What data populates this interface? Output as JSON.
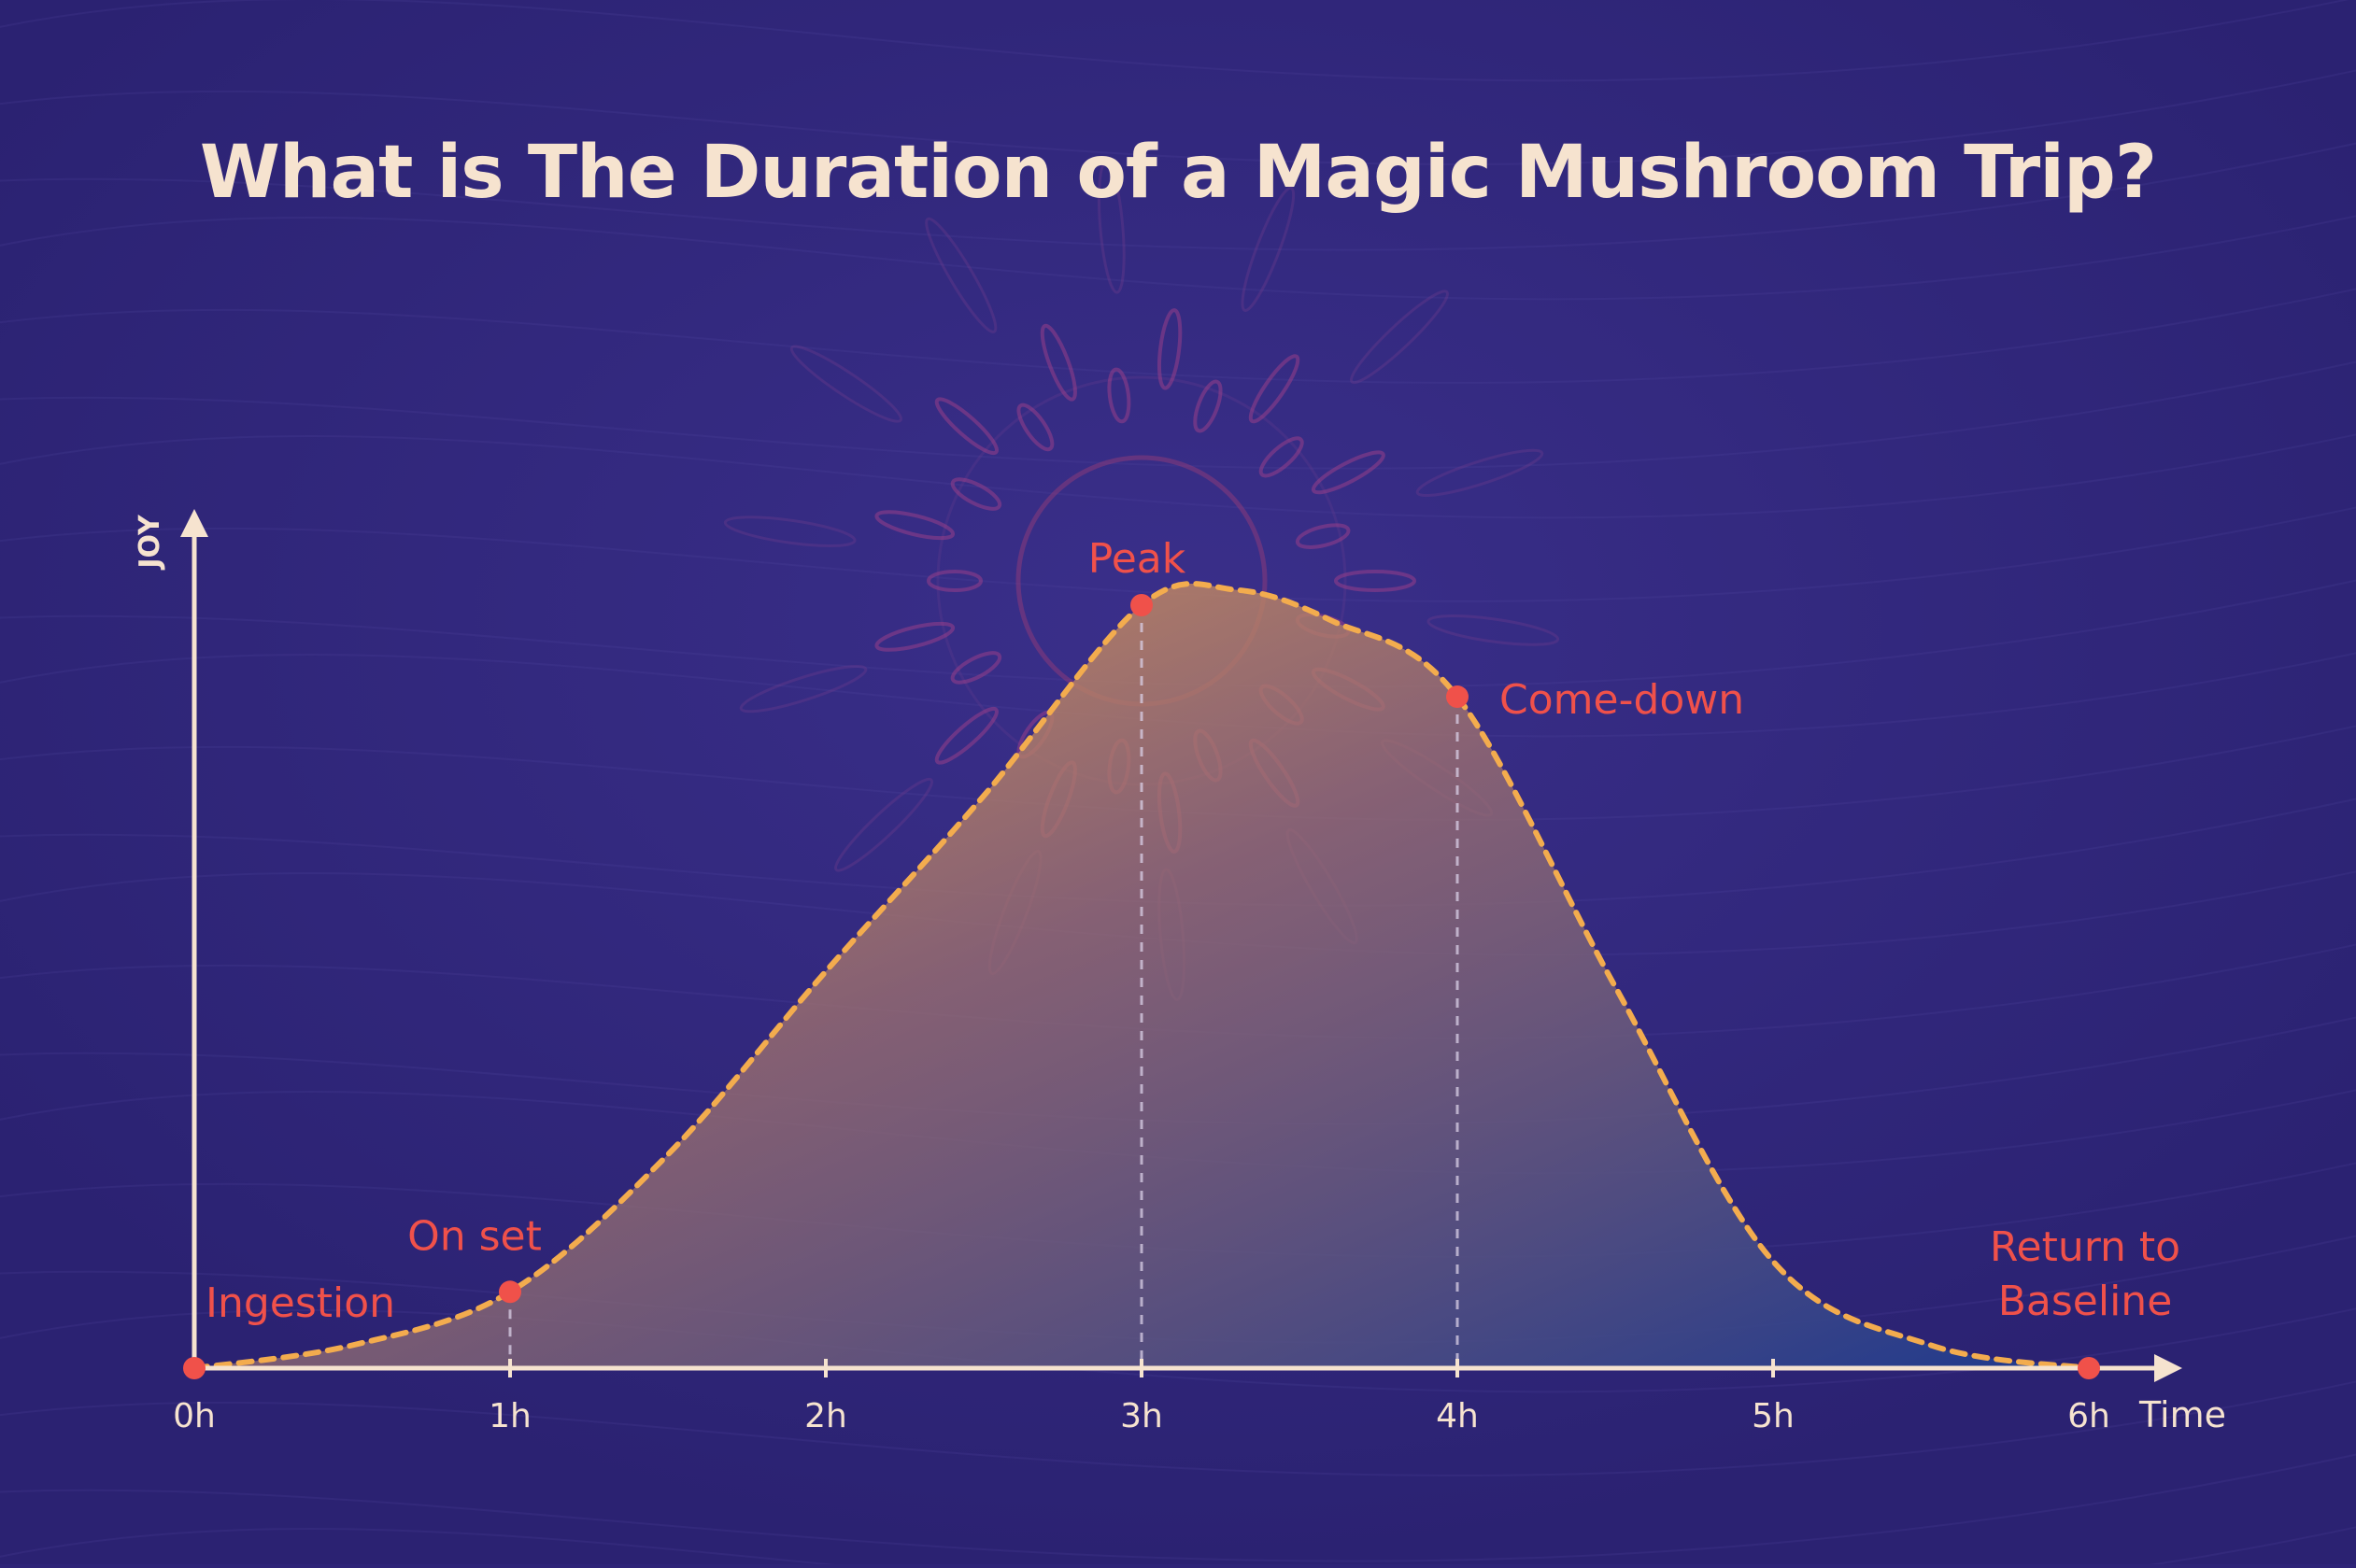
{
  "chart_data": {
    "type": "area",
    "title": "What is The Duration of a Magic Mushroom Trip?",
    "xlabel": "Time",
    "ylabel": "JOY",
    "x_ticks": [
      "0h",
      "1h",
      "2h",
      "3h",
      "4h",
      "5h",
      "6h"
    ],
    "xlim": [
      0,
      6
    ],
    "ylim": [
      0,
      100
    ],
    "x": [
      0,
      0.5,
      1,
      1.5,
      2,
      2.5,
      3,
      3.3,
      3.6,
      4,
      4.5,
      5,
      5.5,
      6
    ],
    "y": [
      0,
      3,
      10,
      28,
      52,
      75,
      100,
      102,
      98,
      88,
      50,
      14,
      3,
      0
    ],
    "milestones": [
      {
        "label": "Ingestion",
        "x": 0,
        "y": 0
      },
      {
        "label": "On set",
        "x": 1,
        "y": 10
      },
      {
        "label": "Peak",
        "x": 3,
        "y": 100
      },
      {
        "label": "Come-down",
        "x": 4,
        "y": 88
      },
      {
        "label": "Return to Baseline",
        "x": 6,
        "y": 0
      }
    ],
    "grid": false,
    "colors": {
      "background": "#2e2478",
      "curve": "#f3ac4e",
      "milestone": "#f0514a",
      "axis": "#f6e3cf",
      "fill_top": "#e7a052",
      "fill_bottom": "#1d3a8f"
    }
  }
}
